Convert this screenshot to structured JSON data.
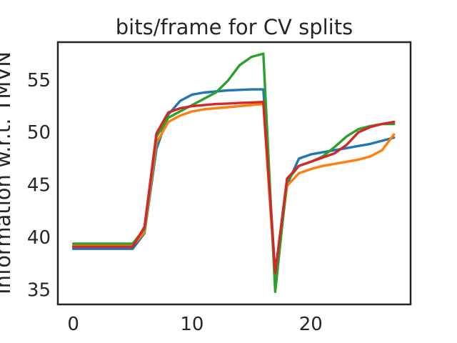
{
  "chart_data": {
    "type": "line",
    "title": "bits/frame for CV splits",
    "xlabel": "",
    "ylabel": "Information w.r.t. TMVN",
    "xlim": [
      -1.3,
      28.4
    ],
    "ylim": [
      33.6,
      58.6
    ],
    "xticks": [
      0,
      10,
      20
    ],
    "yticks": [
      35,
      40,
      45,
      50,
      55
    ],
    "grid": false,
    "legend": "none",
    "x": [
      0,
      1,
      2,
      3,
      4,
      5,
      6,
      7,
      8,
      9,
      10,
      11,
      12,
      13,
      14,
      15,
      16,
      17,
      18,
      19,
      20,
      21,
      22,
      23,
      24,
      25,
      26,
      27
    ],
    "series": [
      {
        "color": "#1f77b4",
        "values": [
          38.9,
          38.9,
          38.9,
          38.9,
          38.9,
          38.9,
          40.4,
          48.4,
          51.7,
          53.0,
          53.6,
          53.8,
          53.9,
          54.0,
          54.05,
          54.1,
          54.1,
          36.6,
          45.0,
          47.5,
          47.9,
          48.1,
          48.3,
          48.5,
          48.7,
          48.9,
          49.2,
          49.5
        ]
      },
      {
        "color": "#ff7f0e",
        "values": [
          39.2,
          39.2,
          39.2,
          39.2,
          39.2,
          39.2,
          40.5,
          49.0,
          51.0,
          51.6,
          52.0,
          52.2,
          52.3,
          52.4,
          52.5,
          52.6,
          52.7,
          36.0,
          44.9,
          46.1,
          46.5,
          46.8,
          47.0,
          47.2,
          47.4,
          47.7,
          48.3,
          49.8
        ]
      },
      {
        "color": "#2ca02c",
        "values": [
          39.4,
          39.4,
          39.4,
          39.4,
          39.4,
          39.4,
          40.8,
          49.6,
          51.4,
          52.0,
          52.6,
          53.2,
          53.8,
          54.9,
          56.4,
          57.2,
          57.5,
          34.8,
          45.4,
          46.8,
          47.2,
          47.7,
          48.6,
          49.6,
          50.3,
          50.6,
          50.8,
          50.8
        ]
      },
      {
        "color": "#d62728",
        "values": [
          39.1,
          39.1,
          39.1,
          39.1,
          39.1,
          39.1,
          41.0,
          49.9,
          51.9,
          52.3,
          52.5,
          52.6,
          52.7,
          52.75,
          52.8,
          52.85,
          52.9,
          36.6,
          45.6,
          46.8,
          47.2,
          47.6,
          48.0,
          48.8,
          50.0,
          50.5,
          50.8,
          51.0
        ]
      }
    ]
  }
}
